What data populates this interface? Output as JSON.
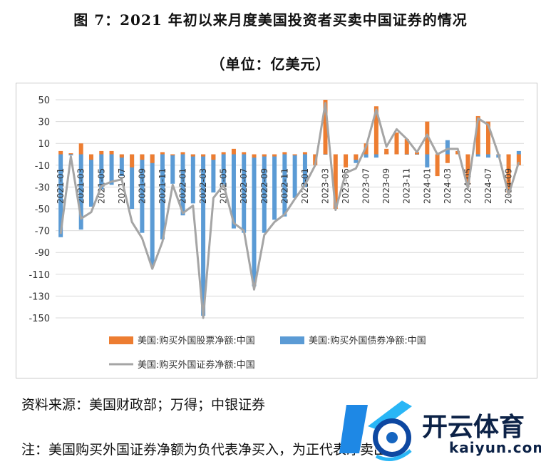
{
  "title": "图 7：2021 年初以来月度美国投资者买卖中国证券的情况",
  "subtitle": "（单位：亿美元）",
  "source_note": "资料来源：美国财政部；万得；中银证券",
  "footnote": "注：美国购买外国证券净额为负代表净买入，为正代表净卖出。",
  "watermark": {
    "brand": "开云体育",
    "url": "kaiyun.com"
  },
  "colors": {
    "stock": "#ed7d31",
    "bond": "#5b9bd5",
    "net": "#a5a5a5",
    "grid": "#d9d9d9"
  },
  "chart_data": {
    "type": "bar",
    "y_ticks": [
      50,
      30,
      10,
      -10,
      -30,
      -50,
      -70,
      -90,
      -110,
      -130,
      -150
    ],
    "ylim": [
      -150,
      50
    ],
    "grid": true,
    "legend_position": "bottom",
    "x_tick_labels": [
      "2021-01",
      "2021-03",
      "2021-05",
      "2021-07",
      "2021-09",
      "2021-11",
      "2022-01",
      "2022-03",
      "2022-05",
      "2022-07",
      "2022-09",
      "2022-11",
      "2023-01",
      "2023-03",
      "2023-05",
      "2023-07",
      "2023-09",
      "2023-11",
      "2024-01",
      "2024-03",
      "2024-05",
      "2024-07",
      "2024-09"
    ],
    "categories": [
      "2021-01",
      "2021-02",
      "2021-03",
      "2021-04",
      "2021-05",
      "2021-06",
      "2021-07",
      "2021-08",
      "2021-09",
      "2021-10",
      "2021-11",
      "2021-12",
      "2022-01",
      "2022-02",
      "2022-03",
      "2022-04",
      "2022-05",
      "2022-06",
      "2022-07",
      "2022-08",
      "2022-09",
      "2022-10",
      "2022-11",
      "2022-12",
      "2023-01",
      "2023-02",
      "2023-03",
      "2023-04",
      "2023-05",
      "2023-06",
      "2023-07",
      "2023-08",
      "2023-09",
      "2023-10",
      "2023-11",
      "2023-12",
      "2024-01",
      "2024-02",
      "2024-03",
      "2024-04",
      "2024-05",
      "2024-06",
      "2024-07",
      "2024-08",
      "2024-09",
      "2024-10"
    ],
    "series": [
      {
        "name": "美国:购买外国股票净额:中国",
        "type": "bar",
        "values": [
          3,
          1,
          10,
          -5,
          3,
          3,
          -3,
          -12,
          -5,
          -8,
          2,
          -1,
          2,
          -2,
          -2,
          -5,
          2,
          5,
          2,
          -3,
          -2,
          -2,
          2,
          -1,
          2,
          -10,
          50,
          -50,
          -12,
          -5,
          10,
          44,
          5,
          20,
          14,
          2,
          30,
          -20,
          -8,
          3,
          -28,
          35,
          30,
          0,
          -35,
          -10
        ]
      },
      {
        "name": "美国:购买外国债券净额:中国",
        "type": "bar",
        "values": [
          -76,
          -1,
          -69,
          -48,
          -32,
          -28,
          -20,
          -50,
          -72,
          -102,
          -78,
          -27,
          -56,
          -45,
          -148,
          -35,
          -30,
          -68,
          -72,
          -121,
          -72,
          -60,
          -57,
          -40,
          -30,
          0,
          0,
          0,
          -5,
          -8,
          -3,
          -3,
          2,
          3,
          0,
          0,
          -12,
          0,
          13,
          2,
          -3,
          -2,
          -3,
          -3,
          -2,
          3
        ]
      },
      {
        "name": "美国:购买外国证券净额:中国",
        "type": "line",
        "values": [
          -73,
          -2,
          -59,
          -53,
          -29,
          -25,
          -23,
          -62,
          -77,
          -105,
          -80,
          -28,
          -54,
          -47,
          -150,
          -40,
          -28,
          -63,
          -70,
          -124,
          -74,
          -62,
          -55,
          -41,
          -28,
          -10,
          47,
          -51,
          -17,
          -13,
          7,
          41,
          7,
          23,
          14,
          2,
          18,
          0,
          5,
          5,
          -31,
          33,
          27,
          0,
          -37,
          -7
        ]
      }
    ]
  }
}
